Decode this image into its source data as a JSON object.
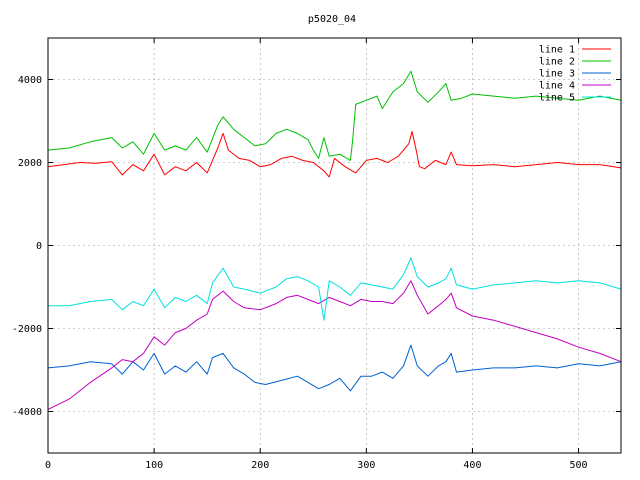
{
  "chart_data": {
    "type": "line",
    "title": "p5020_04",
    "xlabel": "",
    "ylabel": "",
    "xlim": [
      0,
      540
    ],
    "ylim": [
      -5000,
      5000
    ],
    "x_ticks": [
      0,
      100,
      200,
      300,
      400,
      500
    ],
    "y_ticks": [
      -4000,
      -2000,
      0,
      2000,
      4000
    ],
    "x_tick_labels": [
      "0",
      "100",
      "200",
      "300",
      "400",
      "500"
    ],
    "y_tick_labels": [
      "-4000",
      "-2000",
      "0",
      "2000",
      "4000"
    ],
    "grid": true,
    "legend_position": "top-right",
    "series": [
      {
        "name": "line 1",
        "color": "#ff0000",
        "points": [
          [
            0,
            1900
          ],
          [
            15,
            1950
          ],
          [
            30,
            2000
          ],
          [
            45,
            1980
          ],
          [
            60,
            2020
          ],
          [
            70,
            1700
          ],
          [
            80,
            1950
          ],
          [
            90,
            1800
          ],
          [
            100,
            2200
          ],
          [
            110,
            1700
          ],
          [
            120,
            1900
          ],
          [
            130,
            1800
          ],
          [
            140,
            2000
          ],
          [
            150,
            1750
          ],
          [
            160,
            2350
          ],
          [
            165,
            2700
          ],
          [
            170,
            2300
          ],
          [
            180,
            2100
          ],
          [
            190,
            2050
          ],
          [
            200,
            1900
          ],
          [
            210,
            1950
          ],
          [
            220,
            2100
          ],
          [
            230,
            2150
          ],
          [
            240,
            2050
          ],
          [
            250,
            2000
          ],
          [
            255,
            1900
          ],
          [
            260,
            1800
          ],
          [
            265,
            1650
          ],
          [
            270,
            2100
          ],
          [
            280,
            1900
          ],
          [
            290,
            1750
          ],
          [
            300,
            2050
          ],
          [
            310,
            2100
          ],
          [
            320,
            2000
          ],
          [
            330,
            2150
          ],
          [
            340,
            2450
          ],
          [
            343,
            2750
          ],
          [
            347,
            2300
          ],
          [
            350,
            1900
          ],
          [
            355,
            1850
          ],
          [
            365,
            2050
          ],
          [
            375,
            1950
          ],
          [
            380,
            2250
          ],
          [
            385,
            1950
          ],
          [
            400,
            1920
          ],
          [
            420,
            1950
          ],
          [
            440,
            1900
          ],
          [
            460,
            1950
          ],
          [
            480,
            2000
          ],
          [
            500,
            1950
          ],
          [
            520,
            1950
          ],
          [
            540,
            1870
          ]
        ]
      },
      {
        "name": "line 2",
        "color": "#00c000",
        "points": [
          [
            0,
            2300
          ],
          [
            20,
            2350
          ],
          [
            40,
            2500
          ],
          [
            60,
            2600
          ],
          [
            70,
            2350
          ],
          [
            80,
            2500
          ],
          [
            90,
            2200
          ],
          [
            100,
            2700
          ],
          [
            110,
            2300
          ],
          [
            120,
            2400
          ],
          [
            130,
            2300
          ],
          [
            140,
            2600
          ],
          [
            150,
            2250
          ],
          [
            160,
            2900
          ],
          [
            165,
            3100
          ],
          [
            175,
            2800
          ],
          [
            185,
            2600
          ],
          [
            195,
            2400
          ],
          [
            205,
            2450
          ],
          [
            215,
            2700
          ],
          [
            225,
            2800
          ],
          [
            235,
            2700
          ],
          [
            245,
            2550
          ],
          [
            250,
            2300
          ],
          [
            255,
            2100
          ],
          [
            260,
            2600
          ],
          [
            265,
            2150
          ],
          [
            275,
            2200
          ],
          [
            285,
            2050
          ],
          [
            287,
            2500
          ],
          [
            290,
            3400
          ],
          [
            300,
            3500
          ],
          [
            310,
            3600
          ],
          [
            315,
            3300
          ],
          [
            325,
            3700
          ],
          [
            335,
            3900
          ],
          [
            342,
            4200
          ],
          [
            348,
            3700
          ],
          [
            358,
            3450
          ],
          [
            368,
            3700
          ],
          [
            375,
            3900
          ],
          [
            380,
            3500
          ],
          [
            390,
            3550
          ],
          [
            400,
            3650
          ],
          [
            420,
            3600
          ],
          [
            440,
            3550
          ],
          [
            460,
            3600
          ],
          [
            480,
            3550
          ],
          [
            500,
            3500
          ],
          [
            520,
            3600
          ],
          [
            540,
            3500
          ]
        ]
      },
      {
        "name": "line 3",
        "color": "#0060d0",
        "points": [
          [
            0,
            -2950
          ],
          [
            20,
            -2900
          ],
          [
            40,
            -2800
          ],
          [
            60,
            -2850
          ],
          [
            70,
            -3100
          ],
          [
            80,
            -2800
          ],
          [
            90,
            -3000
          ],
          [
            100,
            -2600
          ],
          [
            110,
            -3100
          ],
          [
            120,
            -2900
          ],
          [
            130,
            -3050
          ],
          [
            140,
            -2800
          ],
          [
            150,
            -3100
          ],
          [
            155,
            -2700
          ],
          [
            165,
            -2600
          ],
          [
            175,
            -2950
          ],
          [
            185,
            -3100
          ],
          [
            195,
            -3300
          ],
          [
            205,
            -3350
          ],
          [
            220,
            -3250
          ],
          [
            235,
            -3150
          ],
          [
            245,
            -3300
          ],
          [
            255,
            -3450
          ],
          [
            265,
            -3350
          ],
          [
            275,
            -3200
          ],
          [
            285,
            -3500
          ],
          [
            295,
            -3150
          ],
          [
            305,
            -3150
          ],
          [
            315,
            -3050
          ],
          [
            325,
            -3200
          ],
          [
            335,
            -2900
          ],
          [
            342,
            -2400
          ],
          [
            348,
            -2900
          ],
          [
            358,
            -3150
          ],
          [
            368,
            -2900
          ],
          [
            375,
            -2800
          ],
          [
            380,
            -2600
          ],
          [
            385,
            -3050
          ],
          [
            400,
            -3000
          ],
          [
            420,
            -2950
          ],
          [
            440,
            -2950
          ],
          [
            460,
            -2900
          ],
          [
            480,
            -2950
          ],
          [
            500,
            -2850
          ],
          [
            520,
            -2900
          ],
          [
            540,
            -2800
          ]
        ]
      },
      {
        "name": "line 4",
        "color": "#c000c0",
        "points": [
          [
            0,
            -3950
          ],
          [
            20,
            -3700
          ],
          [
            40,
            -3300
          ],
          [
            60,
            -2950
          ],
          [
            70,
            -2750
          ],
          [
            80,
            -2800
          ],
          [
            90,
            -2600
          ],
          [
            100,
            -2200
          ],
          [
            110,
            -2400
          ],
          [
            120,
            -2100
          ],
          [
            130,
            -2000
          ],
          [
            140,
            -1800
          ],
          [
            150,
            -1650
          ],
          [
            155,
            -1300
          ],
          [
            165,
            -1100
          ],
          [
            175,
            -1350
          ],
          [
            185,
            -1500
          ],
          [
            200,
            -1550
          ],
          [
            215,
            -1400
          ],
          [
            225,
            -1250
          ],
          [
            235,
            -1200
          ],
          [
            245,
            -1300
          ],
          [
            255,
            -1400
          ],
          [
            265,
            -1250
          ],
          [
            275,
            -1350
          ],
          [
            285,
            -1450
          ],
          [
            295,
            -1300
          ],
          [
            305,
            -1350
          ],
          [
            315,
            -1350
          ],
          [
            325,
            -1400
          ],
          [
            335,
            -1150
          ],
          [
            342,
            -850
          ],
          [
            348,
            -1200
          ],
          [
            358,
            -1650
          ],
          [
            368,
            -1450
          ],
          [
            375,
            -1300
          ],
          [
            380,
            -1150
          ],
          [
            385,
            -1500
          ],
          [
            400,
            -1700
          ],
          [
            420,
            -1800
          ],
          [
            440,
            -1950
          ],
          [
            460,
            -2100
          ],
          [
            480,
            -2250
          ],
          [
            500,
            -2450
          ],
          [
            520,
            -2600
          ],
          [
            540,
            -2800
          ]
        ]
      },
      {
        "name": "line 5",
        "color": "#00e0e0",
        "points": [
          [
            0,
            -1450
          ],
          [
            20,
            -1450
          ],
          [
            40,
            -1350
          ],
          [
            60,
            -1300
          ],
          [
            70,
            -1550
          ],
          [
            80,
            -1350
          ],
          [
            90,
            -1450
          ],
          [
            100,
            -1050
          ],
          [
            110,
            -1500
          ],
          [
            120,
            -1250
          ],
          [
            130,
            -1350
          ],
          [
            140,
            -1200
          ],
          [
            150,
            -1400
          ],
          [
            155,
            -900
          ],
          [
            165,
            -550
          ],
          [
            175,
            -1000
          ],
          [
            185,
            -1050
          ],
          [
            200,
            -1150
          ],
          [
            215,
            -1000
          ],
          [
            225,
            -800
          ],
          [
            235,
            -750
          ],
          [
            245,
            -850
          ],
          [
            255,
            -1000
          ],
          [
            260,
            -1800
          ],
          [
            265,
            -850
          ],
          [
            275,
            -1000
          ],
          [
            285,
            -1200
          ],
          [
            295,
            -900
          ],
          [
            305,
            -950
          ],
          [
            315,
            -1000
          ],
          [
            325,
            -1050
          ],
          [
            335,
            -700
          ],
          [
            342,
            -300
          ],
          [
            348,
            -750
          ],
          [
            358,
            -1000
          ],
          [
            368,
            -900
          ],
          [
            375,
            -800
          ],
          [
            380,
            -550
          ],
          [
            385,
            -950
          ],
          [
            400,
            -1050
          ],
          [
            420,
            -950
          ],
          [
            440,
            -900
          ],
          [
            460,
            -850
          ],
          [
            480,
            -900
          ],
          [
            500,
            -850
          ],
          [
            520,
            -900
          ],
          [
            540,
            -1050
          ]
        ]
      }
    ]
  }
}
